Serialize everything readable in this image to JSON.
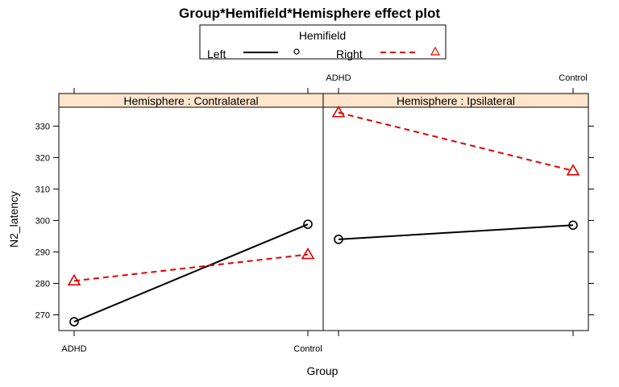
{
  "chart_data": {
    "type": "line",
    "title": "Group*Hemifield*Hemisphere effect plot",
    "xlabel": "Group",
    "ylabel": "N2_latency",
    "categories": [
      "ADHD",
      "Control"
    ],
    "ylim": [
      265,
      336
    ],
    "yticks": [
      270,
      280,
      290,
      300,
      310,
      320,
      330
    ],
    "legend": {
      "title": "Hemifield",
      "placement": "top",
      "entries": [
        "Left",
        "Right"
      ]
    },
    "panels": [
      {
        "strip": "Hemisphere : Contralateral",
        "series": [
          {
            "name": "Left",
            "values": [
              267.8,
              298.8
            ]
          },
          {
            "name": "Right",
            "values": [
              280.8,
              289.2
            ]
          }
        ]
      },
      {
        "strip": "Hemisphere : Ipsilateral",
        "series": [
          {
            "name": "Left",
            "values": [
              294.0,
              298.5
            ]
          },
          {
            "name": "Right",
            "values": [
              334.3,
              315.8
            ]
          }
        ]
      }
    ],
    "colors": {
      "Left": "#000000",
      "Right": "#e00000",
      "strip_fill": "#ffe5cc"
    }
  }
}
